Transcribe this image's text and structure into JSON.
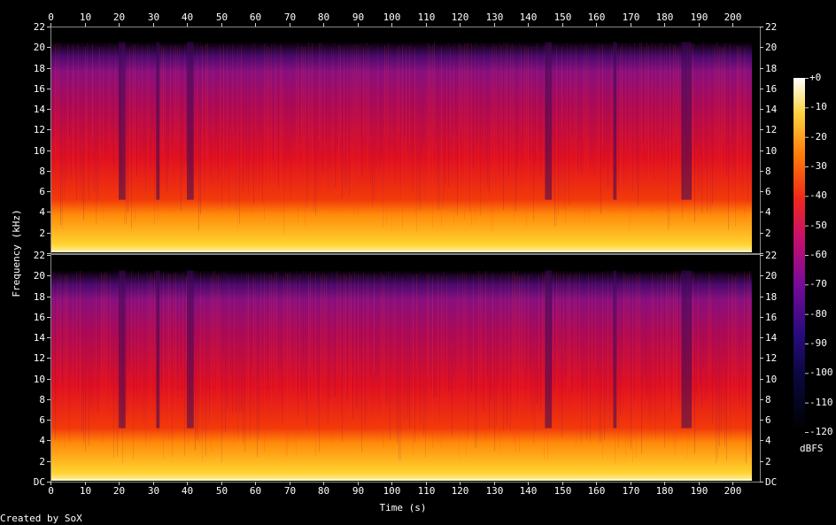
{
  "chart_data": {
    "type": "heatmap",
    "xlabel": "Time (s)",
    "ylabel": "Frequency (kHz)",
    "x_ticks": [
      0,
      10,
      20,
      30,
      40,
      50,
      60,
      70,
      80,
      90,
      100,
      110,
      120,
      130,
      140,
      150,
      160,
      170,
      180,
      190,
      200
    ],
    "xlim": [
      0,
      208
    ],
    "y_tick_labels": [
      "DC",
      "2",
      "4",
      "6",
      "8",
      "10",
      "12",
      "14",
      "16",
      "18",
      "20",
      "22"
    ],
    "ylim_khz": [
      0,
      22
    ],
    "channels": 2,
    "colorbar": {
      "label": "dBFS",
      "ticks": [
        "+0",
        "-10",
        "-20",
        "-30",
        "-40",
        "-50",
        "-60",
        "-70",
        "-80",
        "-90",
        "-100",
        "-110",
        "-120"
      ],
      "range_db": [
        -120,
        0
      ]
    },
    "quiet_passages_s": [
      [
        20,
        22
      ],
      [
        31,
        32
      ],
      [
        40,
        42
      ],
      [
        145,
        147
      ],
      [
        165,
        166
      ],
      [
        185,
        188
      ]
    ],
    "footer": "Created by SoX"
  }
}
